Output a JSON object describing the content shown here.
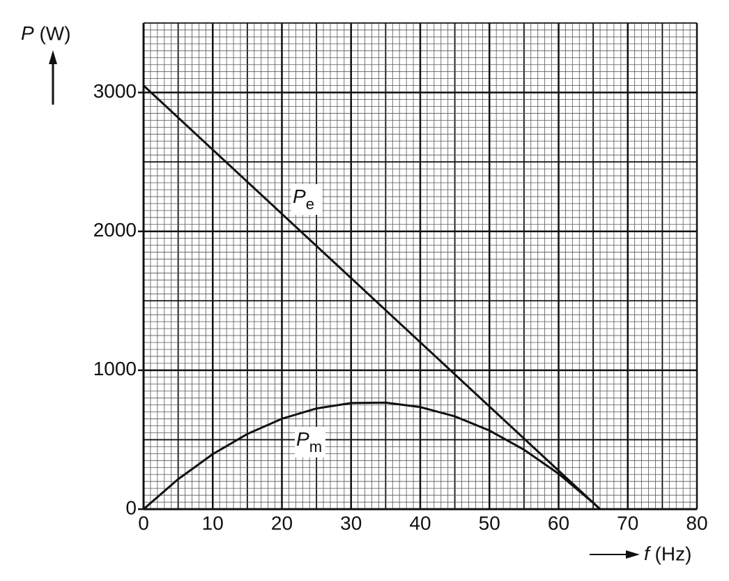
{
  "chart_data": {
    "type": "line",
    "x_label": "f (Hz)",
    "y_label": "P (W)",
    "xlim": [
      0,
      80
    ],
    "xticks": [
      0,
      10,
      20,
      30,
      40,
      50,
      60,
      70,
      80
    ],
    "ylim": [
      0,
      3500
    ],
    "yticks": [
      0,
      1000,
      2000,
      3000
    ],
    "grid": true,
    "series": [
      {
        "name": "Pe",
        "color": "#111111",
        "x": [
          0,
          66
        ],
        "values": [
          3050,
          0
        ]
      },
      {
        "name": "Pm",
        "color": "#111111",
        "x": [
          0,
          5,
          10,
          15,
          20,
          25,
          30,
          35,
          40,
          45,
          50,
          55,
          60,
          65,
          66
        ],
        "values": [
          0,
          216,
          396,
          541,
          651,
          725,
          764,
          767,
          735,
          668,
          566,
          428,
          255,
          46,
          0
        ]
      }
    ]
  }
}
